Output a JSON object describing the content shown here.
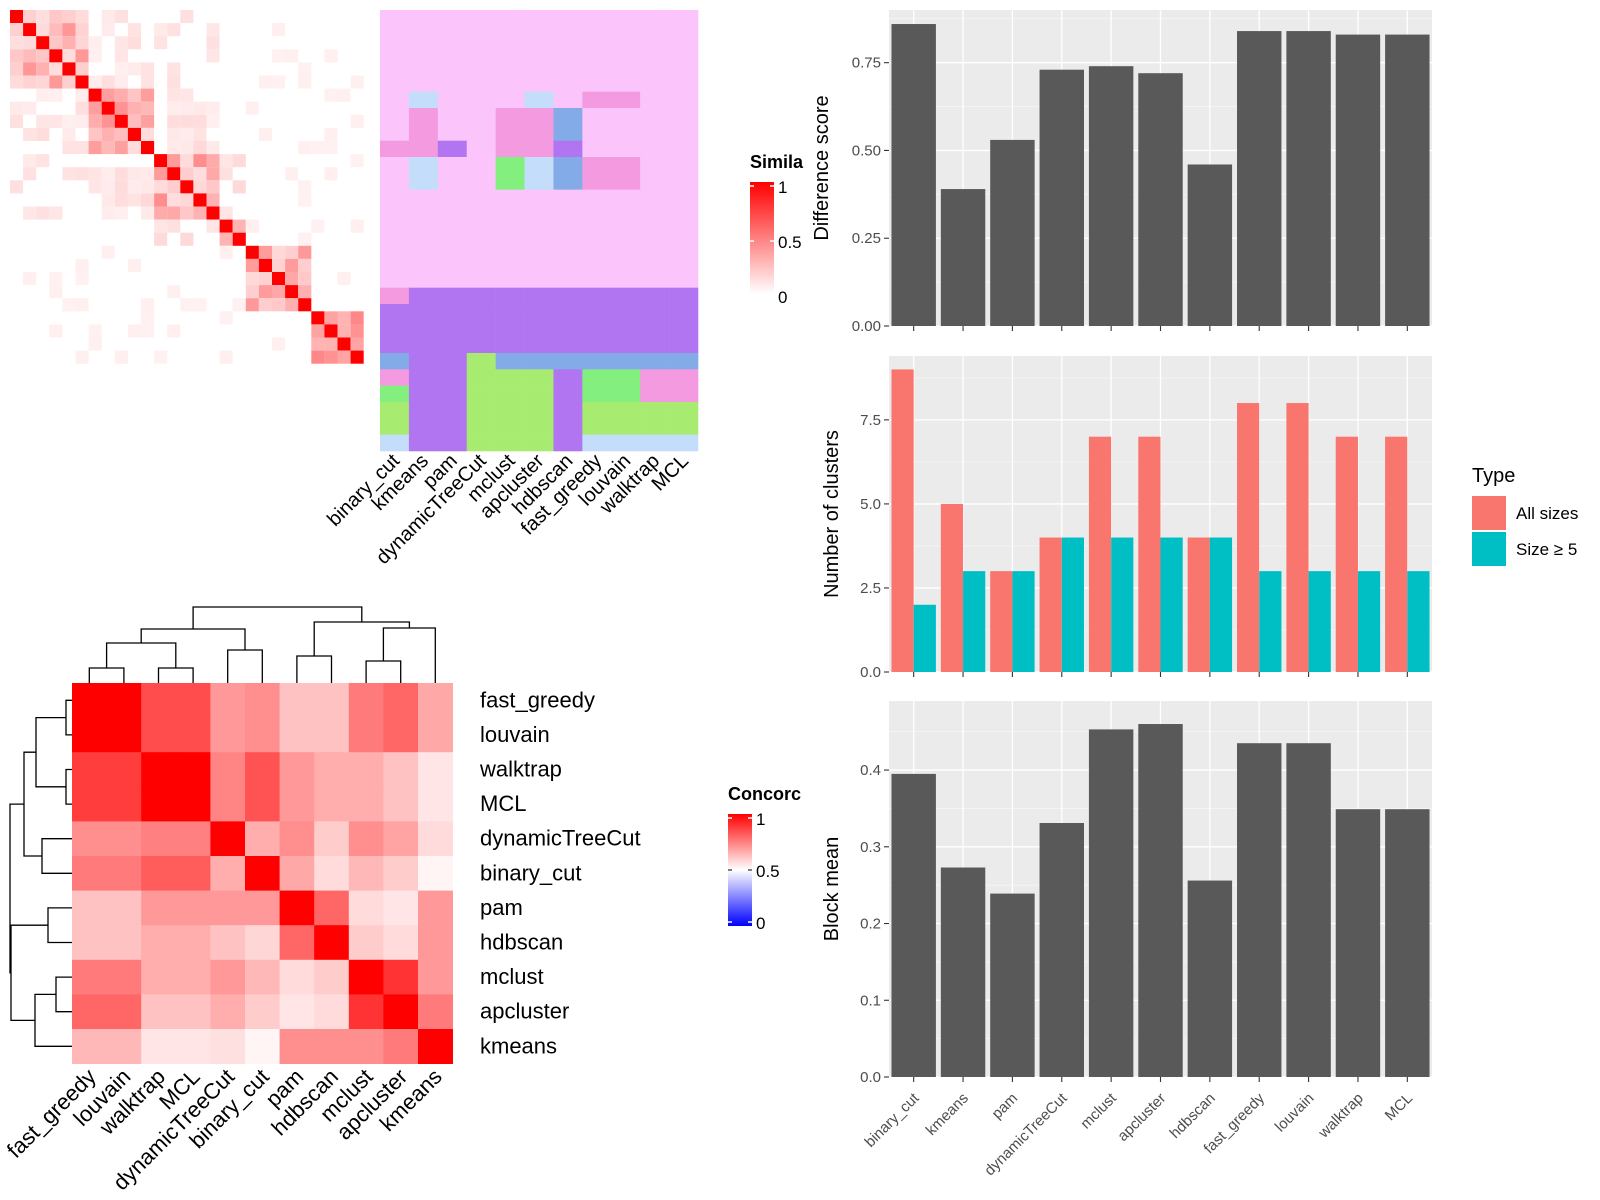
{
  "chart_data": [
    {
      "type": "heatmap",
      "id": "similarity",
      "legend": {
        "title": "Simila",
        "ticks": [
          "1",
          "0.5",
          "0"
        ],
        "colors": [
          "#ff0000",
          "#ffffff"
        ]
      },
      "x_labels": [
        "binary_cut",
        "kmeans",
        "pam",
        "dynamicTreeCut",
        "mclust",
        "apcluster",
        "hdbscan",
        "fast_greedy",
        "louvain",
        "walktrap",
        "MCL"
      ],
      "cluster_colors": {
        "pink": "#fbc5fb",
        "mauve": "#f39ae0",
        "purple": "#b275f2",
        "blue": "#82abe8",
        "lightblue": "#c3ddfb",
        "green": "#82ef7e",
        "lightgreen": "#a7ec70"
      },
      "membership_rows": [
        {
          "rows": 5,
          "cells": [
            "pink",
            "pink",
            "pink",
            "pink",
            "pink",
            "pink",
            "pink",
            "pink",
            "pink",
            "pink",
            "pink"
          ]
        },
        {
          "rows": 1,
          "cells": [
            "pink",
            "lightblue",
            "pink",
            "pink",
            "pink",
            "lightblue",
            "pink",
            "mauve",
            "mauve",
            "pink",
            "pink"
          ]
        },
        {
          "rows": 2,
          "cells": [
            "pink",
            "mauve",
            "pink",
            "pink",
            "mauve",
            "mauve",
            "blue",
            "pink",
            "pink",
            "pink",
            "pink"
          ]
        },
        {
          "rows": 1,
          "cells": [
            "mauve",
            "mauve",
            "purple",
            "pink",
            "mauve",
            "mauve",
            "purple",
            "pink",
            "pink",
            "pink",
            "pink"
          ]
        },
        {
          "rows": 2,
          "cells": [
            "pink",
            "lightblue",
            "pink",
            "pink",
            "green",
            "lightblue",
            "blue",
            "mauve",
            "mauve",
            "pink",
            "pink"
          ]
        },
        {
          "rows": 2,
          "cells": [
            "pink",
            "pink",
            "pink",
            "pink",
            "pink",
            "pink",
            "pink",
            "pink",
            "pink",
            "pink",
            "pink"
          ]
        },
        {
          "rows": 4,
          "cells": [
            "pink",
            "pink",
            "pink",
            "pink",
            "pink",
            "pink",
            "pink",
            "pink",
            "pink",
            "pink",
            "pink"
          ]
        },
        {
          "rows": 1,
          "cells": [
            "mauve",
            "purple",
            "purple",
            "purple",
            "purple",
            "purple",
            "purple",
            "purple",
            "purple",
            "purple",
            "purple"
          ]
        },
        {
          "rows": 3,
          "cells": [
            "purple",
            "purple",
            "purple",
            "purple",
            "purple",
            "purple",
            "purple",
            "purple",
            "purple",
            "purple",
            "purple"
          ]
        },
        {
          "rows": 1,
          "cells": [
            "blue",
            "purple",
            "purple",
            "lightgreen",
            "blue",
            "blue",
            "blue",
            "blue",
            "blue",
            "blue",
            "blue"
          ]
        },
        {
          "rows": 1,
          "cells": [
            "mauve",
            "purple",
            "purple",
            "lightgreen",
            "lightgreen",
            "lightgreen",
            "purple",
            "green",
            "green",
            "mauve",
            "mauve"
          ]
        },
        {
          "rows": 1,
          "cells": [
            "green",
            "purple",
            "purple",
            "lightgreen",
            "lightgreen",
            "lightgreen",
            "purple",
            "green",
            "green",
            "mauve",
            "mauve"
          ]
        },
        {
          "rows": 2,
          "cells": [
            "lightgreen",
            "purple",
            "purple",
            "lightgreen",
            "lightgreen",
            "lightgreen",
            "purple",
            "lightgreen",
            "lightgreen",
            "lightgreen",
            "lightgreen"
          ]
        },
        {
          "rows": 1,
          "cells": [
            "lightblue",
            "purple",
            "purple",
            "lightgreen",
            "lightgreen",
            "lightgreen",
            "purple",
            "lightblue",
            "lightblue",
            "lightblue",
            "lightblue"
          ]
        }
      ]
    },
    {
      "type": "heatmap",
      "id": "concordance",
      "legend": {
        "title": "Concorc",
        "ticks": [
          "1",
          "0.5",
          "0"
        ],
        "colors": [
          "#ff0000",
          "#ffffff",
          "#0000ff"
        ]
      },
      "row_labels": [
        "fast_greedy",
        "louvain",
        "walktrap",
        "MCL",
        "dynamicTreeCut",
        "binary_cut",
        "pam",
        "hdbscan",
        "mclust",
        "apcluster",
        "kmeans"
      ],
      "col_labels": [
        "fast_greedy",
        "louvain",
        "walktrap",
        "MCL",
        "dynamicTreeCut",
        "binary_cut",
        "pam",
        "hdbscan",
        "mclust",
        "apcluster",
        "kmeans"
      ],
      "values": [
        [
          1.0,
          1.0,
          0.85,
          0.85,
          0.7,
          0.72,
          0.62,
          0.62,
          0.76,
          0.8,
          0.67
        ],
        [
          1.0,
          1.0,
          0.85,
          0.85,
          0.7,
          0.72,
          0.62,
          0.62,
          0.76,
          0.8,
          0.67
        ],
        [
          0.88,
          0.88,
          1.0,
          1.0,
          0.74,
          0.84,
          0.7,
          0.66,
          0.66,
          0.62,
          0.55
        ],
        [
          0.88,
          0.88,
          1.0,
          1.0,
          0.74,
          0.84,
          0.7,
          0.66,
          0.66,
          0.62,
          0.55
        ],
        [
          0.72,
          0.72,
          0.75,
          0.75,
          1.0,
          0.66,
          0.72,
          0.6,
          0.72,
          0.68,
          0.57
        ],
        [
          0.76,
          0.76,
          0.82,
          0.82,
          0.66,
          1.0,
          0.67,
          0.57,
          0.64,
          0.6,
          0.52
        ],
        [
          0.62,
          0.62,
          0.7,
          0.7,
          0.7,
          0.7,
          1.0,
          0.8,
          0.57,
          0.55,
          0.7
        ],
        [
          0.62,
          0.62,
          0.66,
          0.66,
          0.62,
          0.58,
          0.8,
          1.0,
          0.6,
          0.57,
          0.7
        ],
        [
          0.76,
          0.76,
          0.66,
          0.66,
          0.7,
          0.64,
          0.57,
          0.6,
          1.0,
          0.9,
          0.7
        ],
        [
          0.8,
          0.8,
          0.62,
          0.62,
          0.66,
          0.6,
          0.55,
          0.57,
          0.9,
          1.0,
          0.76
        ],
        [
          0.64,
          0.64,
          0.55,
          0.55,
          0.56,
          0.52,
          0.72,
          0.72,
          0.72,
          0.76,
          1.0
        ]
      ]
    },
    {
      "type": "bar",
      "id": "difference-score",
      "ylabel": "Difference score",
      "categories": [
        "binary_cut",
        "kmeans",
        "pam",
        "dynamicTreeCut",
        "mclust",
        "apcluster",
        "hdbscan",
        "fast_greedy",
        "louvain",
        "walktrap",
        "MCL"
      ],
      "values": [
        0.86,
        0.39,
        0.53,
        0.73,
        0.74,
        0.72,
        0.46,
        0.84,
        0.84,
        0.83,
        0.83
      ],
      "ylim": [
        0,
        0.9
      ],
      "yticks": [
        "0.00",
        "0.25",
        "0.50",
        "0.75"
      ],
      "grid": true,
      "bar_color": "#595959"
    },
    {
      "type": "bar",
      "id": "number-of-clusters",
      "ylabel": "Number of clusters",
      "categories": [
        "binary_cut",
        "kmeans",
        "pam",
        "dynamicTreeCut",
        "mclust",
        "apcluster",
        "hdbscan",
        "fast_greedy",
        "louvain",
        "walktrap",
        "MCL"
      ],
      "series": [
        {
          "name": "All sizes",
          "color": "#f8766d",
          "values": [
            9,
            5,
            3,
            4,
            7,
            7,
            4,
            8,
            8,
            7,
            7
          ]
        },
        {
          "name": "Size ≥ 5",
          "color": "#00bfc4",
          "values": [
            2,
            3,
            3,
            4,
            4,
            4,
            4,
            3,
            3,
            3,
            3
          ]
        }
      ],
      "ylim": [
        0,
        9.4
      ],
      "yticks": [
        "0.0",
        "2.5",
        "5.0",
        "7.5"
      ],
      "legend": {
        "title": "Type",
        "position": "right"
      },
      "grid": true
    },
    {
      "type": "bar",
      "id": "block-mean",
      "ylabel": "Block mean",
      "categories": [
        "binary_cut",
        "kmeans",
        "pam",
        "dynamicTreeCut",
        "mclust",
        "apcluster",
        "hdbscan",
        "fast_greedy",
        "louvain",
        "walktrap",
        "MCL"
      ],
      "values": [
        0.395,
        0.273,
        0.239,
        0.331,
        0.453,
        0.46,
        0.256,
        0.435,
        0.435,
        0.349,
        0.349
      ],
      "ylim": [
        0,
        0.49
      ],
      "yticks": [
        "0.0",
        "0.1",
        "0.2",
        "0.3",
        "0.4"
      ],
      "grid": true,
      "bar_color": "#595959"
    }
  ]
}
